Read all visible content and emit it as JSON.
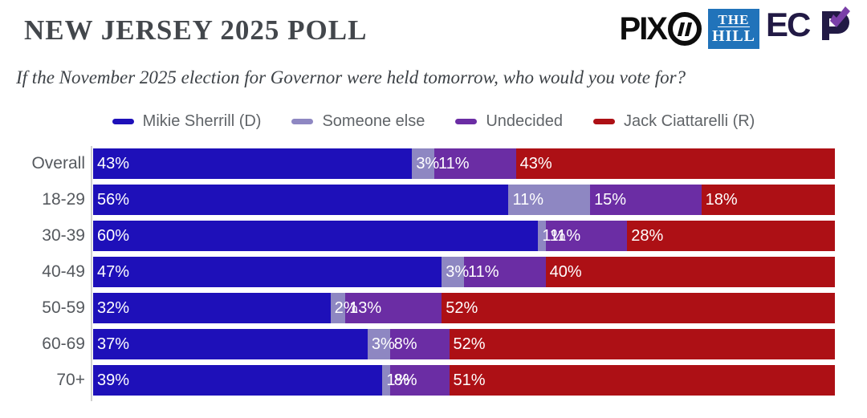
{
  "header": {
    "title": "NEW JERSEY 2025 POLL",
    "subtitle": "If the November 2025 election for Governor were held tomorrow, who would you vote for?"
  },
  "logos": {
    "pix11_text": "PIX",
    "pix11_number": "11",
    "the_hill_line1": "THE",
    "the_hill_line2": "HILL",
    "ecp_text": "EC✔"
  },
  "colors": {
    "dem_blue": "#1e10b9",
    "someone_else_lavender": "#8e87c2",
    "undecided_purple": "#6b2da4",
    "rep_red": "#ad1015",
    "hill_blue": "#2173ba",
    "axis_gray": "#cfcfcf"
  },
  "chart_data": {
    "type": "bar",
    "orientation": "horizontal",
    "stacked": true,
    "value_suffix": "%",
    "xlim": [
      0,
      100
    ],
    "grid": false,
    "legend_position": "top",
    "categories": [
      "Overall",
      "18-29",
      "30-39",
      "40-49",
      "50-59",
      "60-69",
      "70+"
    ],
    "series": [
      {
        "name": "Mikie Sherrill (D)",
        "color": "#1e10b9",
        "values": [
          43,
          56,
          60,
          47,
          32,
          37,
          39
        ]
      },
      {
        "name": "Someone else",
        "color": "#8e87c2",
        "values": [
          3,
          11,
          1,
          3,
          2,
          3,
          1
        ]
      },
      {
        "name": "Undecided",
        "color": "#6b2da4",
        "values": [
          11,
          15,
          11,
          11,
          13,
          8,
          8
        ]
      },
      {
        "name": "Jack Ciattarelli (R)",
        "color": "#ad1015",
        "values": [
          43,
          18,
          28,
          40,
          52,
          52,
          51
        ]
      }
    ]
  }
}
